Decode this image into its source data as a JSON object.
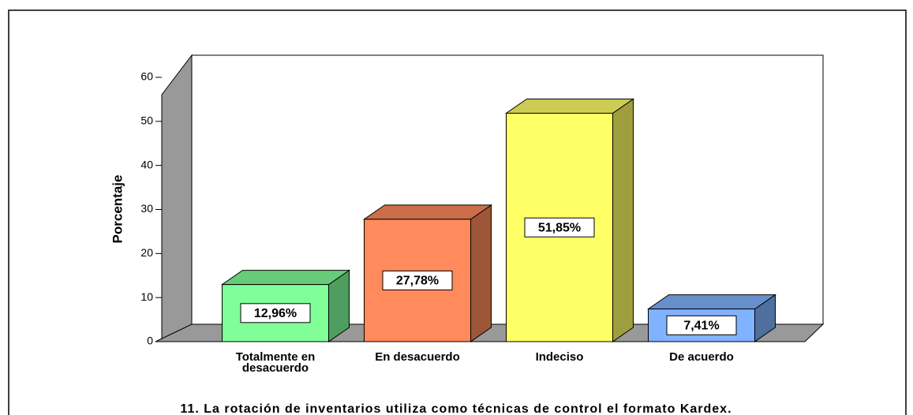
{
  "chart_data": {
    "type": "bar3d",
    "title": "11. La rotación de inventarios utiliza como técnicas de control el formato Kardex.",
    "ylabel": "Porcentaje",
    "categories": [
      "Totalmente en desacuerdo",
      "En desacuerdo",
      "Indeciso",
      "De acuerdo"
    ],
    "values": [
      12.96,
      27.78,
      51.85,
      7.41
    ],
    "value_labels": [
      "12,96%",
      "27,78%",
      "51,85%",
      "7,41%"
    ],
    "colors": [
      "#80ff99",
      "#ff8a5c",
      "#ffff66",
      "#80b3ff"
    ],
    "ylim": [
      0,
      60
    ],
    "yticks": [
      0,
      10,
      20,
      30,
      40,
      50,
      60
    ],
    "grid": false
  }
}
